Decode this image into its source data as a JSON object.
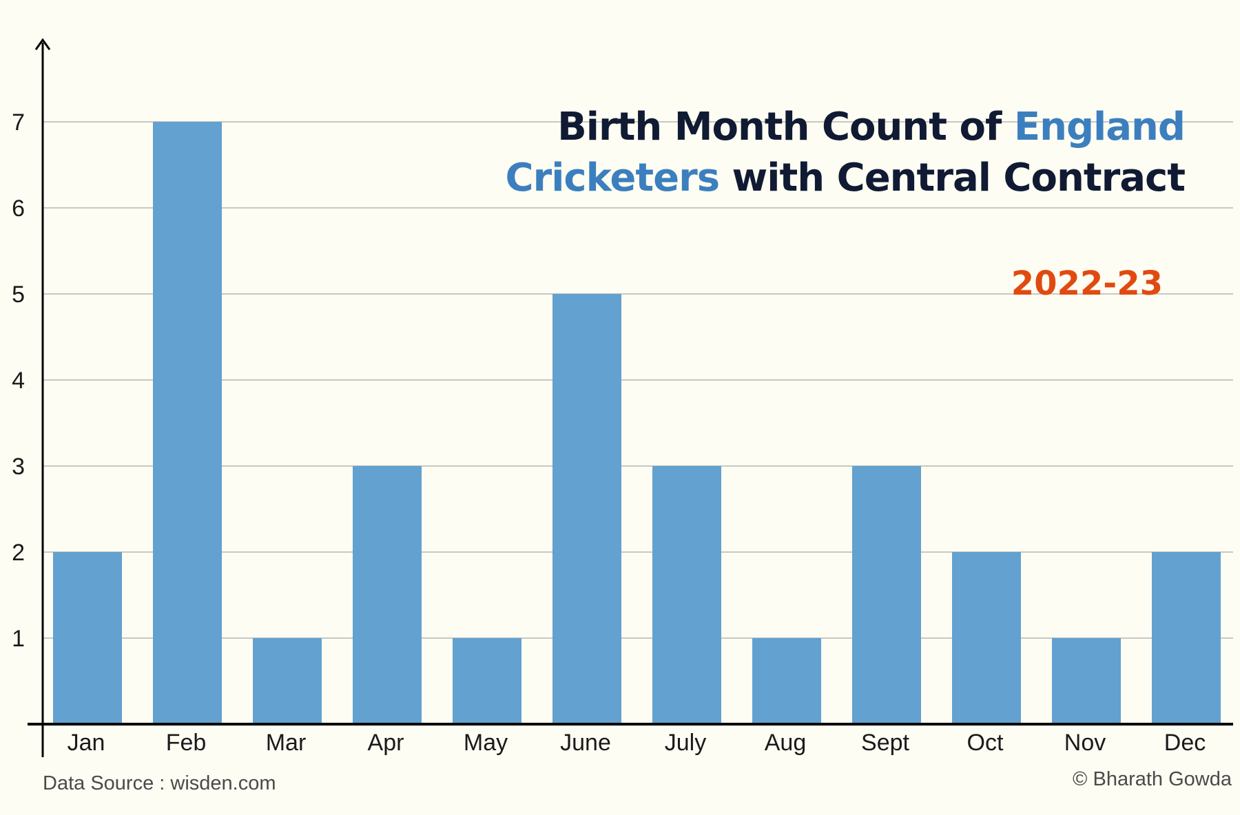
{
  "chart_data": {
    "type": "bar",
    "title_parts": [
      {
        "text": "Birth Month Count of ",
        "highlight": false
      },
      {
        "text": "England Cricketers",
        "highlight": true
      },
      {
        "text": " with Central Contract",
        "highlight": false
      }
    ],
    "subtitle": "2022-23",
    "categories": [
      "Jan",
      "Feb",
      "Mar",
      "Apr",
      "May",
      "June",
      "July",
      "Aug",
      "Sept",
      "Oct",
      "Nov",
      "Dec"
    ],
    "values": [
      2,
      7,
      1,
      3,
      1,
      5,
      3,
      1,
      3,
      2,
      1,
      2
    ],
    "ylim": [
      0,
      7.9
    ],
    "yticks": [
      1,
      2,
      3,
      4,
      5,
      6,
      7
    ],
    "xlabel": "",
    "ylabel": "",
    "grid": true,
    "colors": {
      "bar": "#62a1d0",
      "title": "#101a33",
      "title_highlight": "#3c7fbf",
      "subtitle": "#e04a10",
      "grid": "#a8a8a8",
      "axis": "#000000"
    }
  },
  "footer": {
    "source": "Data Source : wisden.com",
    "credit": "© Bharath Gowda"
  }
}
